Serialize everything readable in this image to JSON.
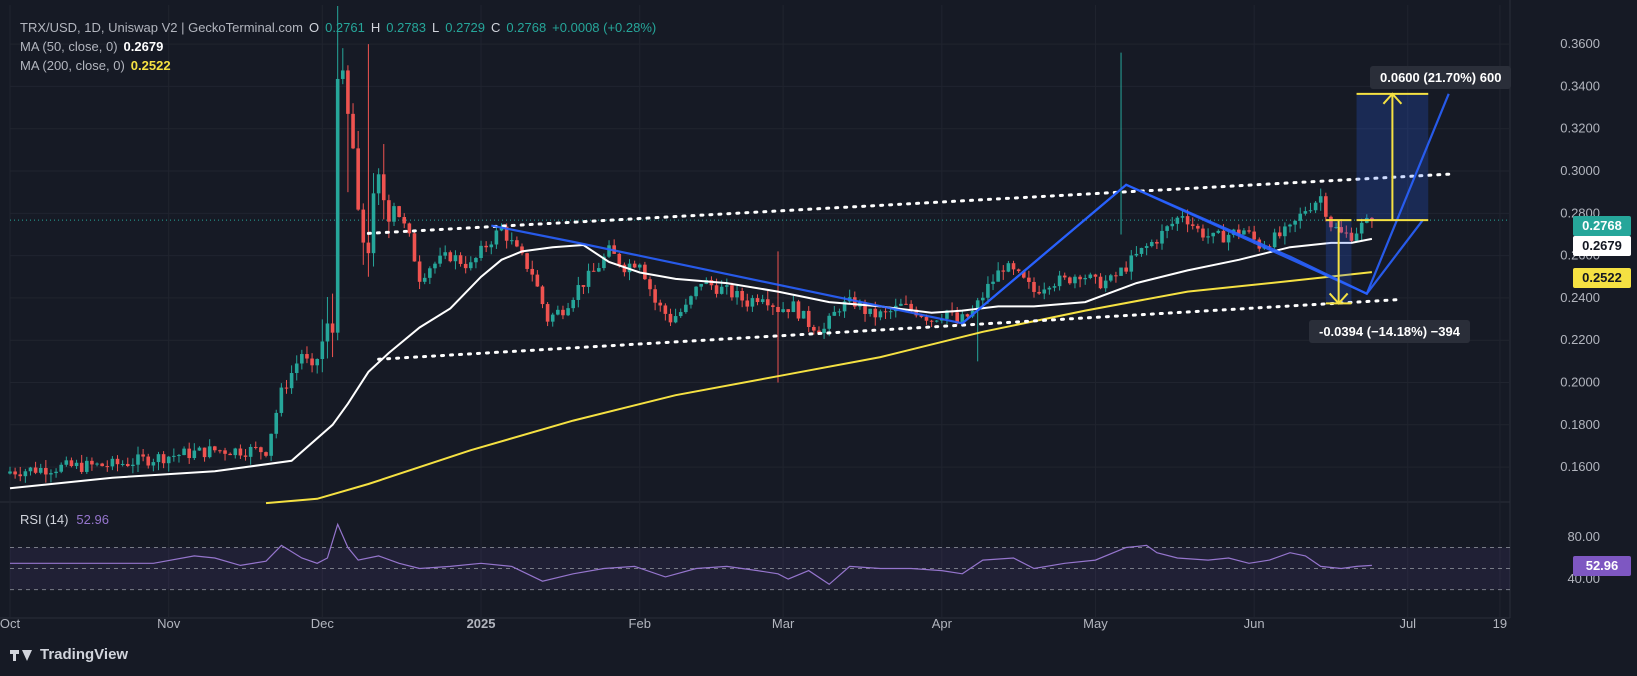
{
  "header": {
    "symbol": "TRX/USD, 1D, Uniswap V2 | GeckoTerminal.com",
    "o_label": "O",
    "o_value": "0.2761",
    "h_label": "H",
    "h_value": "0.2783",
    "l_label": "L",
    "l_value": "0.2729",
    "c_label": "C",
    "c_value": "0.2768",
    "change": "+0.0008 (+0.28%)"
  },
  "ma50": {
    "label": "MA (50, close, 0)",
    "value": "0.2679",
    "color": "#ffffff"
  },
  "ma200": {
    "label": "MA (200, close, 0)",
    "value": "0.2522",
    "color": "#f5e142"
  },
  "rsi": {
    "label": "RSI (14)",
    "value": "52.96",
    "color": "#9575cd"
  },
  "price_tags": {
    "last": "0.2768",
    "ma50": "0.2679",
    "ma200": "0.2522",
    "rsi": "52.96"
  },
  "measure_up": {
    "text": "0.0600 (21.70%) 600"
  },
  "measure_down": {
    "text": "-0.0394 (−14.18%) −394"
  },
  "footer": {
    "brand": "TradingView"
  },
  "chart_data": {
    "type": "candlestick",
    "title": "TRX/USD, 1D, Uniswap V2 | GeckoTerminal.com",
    "x_ticks": [
      "Oct",
      "Nov",
      "Dec",
      "2025",
      "Feb",
      "Mar",
      "Apr",
      "May",
      "Jun",
      "Jul",
      "19"
    ],
    "x_tick_days": [
      0,
      31,
      61,
      92,
      123,
      151,
      182,
      212,
      243,
      273,
      291
    ],
    "y_ticks": [
      "0.3600",
      "0.3400",
      "0.3200",
      "0.3000",
      "0.2800",
      "0.2600",
      "0.2400",
      "0.2200",
      "0.2000",
      "0.1800",
      "0.1600"
    ],
    "ylim": [
      0.1435,
      0.3785
    ],
    "rsi_ticks": [
      "80.00",
      "40.00"
    ],
    "rsi_levels": [
      70,
      50,
      30
    ],
    "rsi_ylim": [
      22,
      98
    ],
    "last_price": 0.2768,
    "close_keypoints": [
      [
        0,
        0.158
      ],
      [
        10,
        0.16
      ],
      [
        20,
        0.161
      ],
      [
        30,
        0.165
      ],
      [
        40,
        0.168
      ],
      [
        50,
        0.168
      ],
      [
        53,
        0.195
      ],
      [
        57,
        0.214
      ],
      [
        59,
        0.205
      ],
      [
        61,
        0.218
      ],
      [
        63,
        0.225
      ],
      [
        64,
        0.355
      ],
      [
        65,
        0.335
      ],
      [
        67,
        0.31
      ],
      [
        68,
        0.27
      ],
      [
        70,
        0.268
      ],
      [
        72,
        0.29
      ],
      [
        75,
        0.285
      ],
      [
        78,
        0.268
      ],
      [
        80,
        0.25
      ],
      [
        82,
        0.255
      ],
      [
        86,
        0.26
      ],
      [
        90,
        0.255
      ],
      [
        93,
        0.265
      ],
      [
        96,
        0.273
      ],
      [
        99,
        0.262
      ],
      [
        102,
        0.252
      ],
      [
        105,
        0.23
      ],
      [
        108,
        0.235
      ],
      [
        111,
        0.245
      ],
      [
        114,
        0.252
      ],
      [
        117,
        0.262
      ],
      [
        120,
        0.255
      ],
      [
        123,
        0.258
      ],
      [
        126,
        0.238
      ],
      [
        129,
        0.23
      ],
      [
        132,
        0.235
      ],
      [
        135,
        0.248
      ],
      [
        138,
        0.245
      ],
      [
        141,
        0.242
      ],
      [
        144,
        0.238
      ],
      [
        147,
        0.242
      ],
      [
        150,
        0.235
      ],
      [
        153,
        0.236
      ],
      [
        156,
        0.228
      ],
      [
        159,
        0.225
      ],
      [
        162,
        0.236
      ],
      [
        165,
        0.238
      ],
      [
        168,
        0.232
      ],
      [
        171,
        0.232
      ],
      [
        174,
        0.236
      ],
      [
        177,
        0.234
      ],
      [
        180,
        0.23
      ],
      [
        183,
        0.234
      ],
      [
        185,
        0.228
      ],
      [
        188,
        0.233
      ],
      [
        191,
        0.245
      ],
      [
        194,
        0.255
      ],
      [
        197,
        0.25
      ],
      [
        200,
        0.243
      ],
      [
        203,
        0.248
      ],
      [
        206,
        0.248
      ],
      [
        209,
        0.252
      ],
      [
        212,
        0.247
      ],
      [
        215,
        0.248
      ],
      [
        218,
        0.255
      ],
      [
        221,
        0.262
      ],
      [
        224,
        0.268
      ],
      [
        227,
        0.275
      ],
      [
        229,
        0.28
      ],
      [
        232,
        0.272
      ],
      [
        235,
        0.268
      ],
      [
        238,
        0.27
      ],
      [
        241,
        0.272
      ],
      [
        244,
        0.265
      ],
      [
        247,
        0.268
      ],
      [
        250,
        0.272
      ],
      [
        253,
        0.282
      ],
      [
        256,
        0.288
      ],
      [
        258,
        0.275
      ],
      [
        260,
        0.27
      ],
      [
        262,
        0.27
      ],
      [
        264,
        0.274
      ],
      [
        266,
        0.2768
      ]
    ],
    "spikes": [
      {
        "day": 64,
        "high": 0.378,
        "low": 0.22
      },
      {
        "day": 66,
        "high": 0.35,
        "low": 0.29
      },
      {
        "day": 70,
        "high": 0.36,
        "low": 0.25
      },
      {
        "day": 217,
        "high": 0.356,
        "low": 0.27
      },
      {
        "day": 189,
        "high": 0.24,
        "low": 0.21
      },
      {
        "day": 150,
        "high": 0.262,
        "low": 0.2
      }
    ],
    "series": [
      {
        "name": "MA (50, close, 0)",
        "color": "#ffffff",
        "points": [
          [
            0,
            0.15
          ],
          [
            20,
            0.155
          ],
          [
            40,
            0.158
          ],
          [
            55,
            0.163
          ],
          [
            63,
            0.18
          ],
          [
            66,
            0.19
          ],
          [
            70,
            0.205
          ],
          [
            74,
            0.214
          ],
          [
            80,
            0.226
          ],
          [
            86,
            0.235
          ],
          [
            92,
            0.25
          ],
          [
            96,
            0.258
          ],
          [
            100,
            0.262
          ],
          [
            106,
            0.264
          ],
          [
            112,
            0.265
          ],
          [
            117,
            0.257
          ],
          [
            123,
            0.252
          ],
          [
            130,
            0.249
          ],
          [
            140,
            0.247
          ],
          [
            150,
            0.243
          ],
          [
            160,
            0.238
          ],
          [
            170,
            0.236
          ],
          [
            180,
            0.233
          ],
          [
            186,
            0.234
          ],
          [
            193,
            0.236
          ],
          [
            200,
            0.236
          ],
          [
            210,
            0.238
          ],
          [
            220,
            0.247
          ],
          [
            230,
            0.253
          ],
          [
            240,
            0.258
          ],
          [
            250,
            0.264
          ],
          [
            258,
            0.266
          ],
          [
            262,
            0.266
          ],
          [
            266,
            0.2679
          ]
        ]
      },
      {
        "name": "MA (200, close, 0)",
        "color": "#f5e142",
        "points": [
          [
            50,
            0.143
          ],
          [
            60,
            0.145
          ],
          [
            70,
            0.152
          ],
          [
            90,
            0.168
          ],
          [
            110,
            0.182
          ],
          [
            130,
            0.194
          ],
          [
            150,
            0.203
          ],
          [
            170,
            0.212
          ],
          [
            190,
            0.224
          ],
          [
            210,
            0.234
          ],
          [
            230,
            0.243
          ],
          [
            250,
            0.248
          ],
          [
            266,
            0.2522
          ]
        ]
      },
      {
        "name": "RSI (14)",
        "color": "#9575cd",
        "points": [
          [
            0,
            55
          ],
          [
            10,
            55
          ],
          [
            20,
            55
          ],
          [
            28,
            55
          ],
          [
            36,
            62
          ],
          [
            40,
            60
          ],
          [
            45,
            53
          ],
          [
            50,
            57
          ],
          [
            53,
            72
          ],
          [
            57,
            60
          ],
          [
            60,
            55
          ],
          [
            62,
            60
          ],
          [
            64,
            92
          ],
          [
            66,
            70
          ],
          [
            68,
            58
          ],
          [
            72,
            62
          ],
          [
            76,
            55
          ],
          [
            80,
            50
          ],
          [
            86,
            52
          ],
          [
            92,
            55
          ],
          [
            98,
            52
          ],
          [
            104,
            38
          ],
          [
            110,
            45
          ],
          [
            116,
            50
          ],
          [
            122,
            52
          ],
          [
            128,
            42
          ],
          [
            134,
            50
          ],
          [
            140,
            52
          ],
          [
            146,
            48
          ],
          [
            150,
            45
          ],
          [
            152,
            40
          ],
          [
            156,
            48
          ],
          [
            160,
            35
          ],
          [
            164,
            52
          ],
          [
            170,
            50
          ],
          [
            176,
            50
          ],
          [
            182,
            48
          ],
          [
            186,
            45
          ],
          [
            190,
            58
          ],
          [
            196,
            60
          ],
          [
            200,
            50
          ],
          [
            206,
            55
          ],
          [
            212,
            58
          ],
          [
            218,
            70
          ],
          [
            222,
            72
          ],
          [
            224,
            65
          ],
          [
            228,
            60
          ],
          [
            234,
            58
          ],
          [
            238,
            60
          ],
          [
            242,
            55
          ],
          [
            246,
            58
          ],
          [
            250,
            65
          ],
          [
            253,
            62
          ],
          [
            256,
            52
          ],
          [
            260,
            50
          ],
          [
            263,
            52
          ],
          [
            266,
            52.96
          ]
        ]
      }
    ]
  }
}
